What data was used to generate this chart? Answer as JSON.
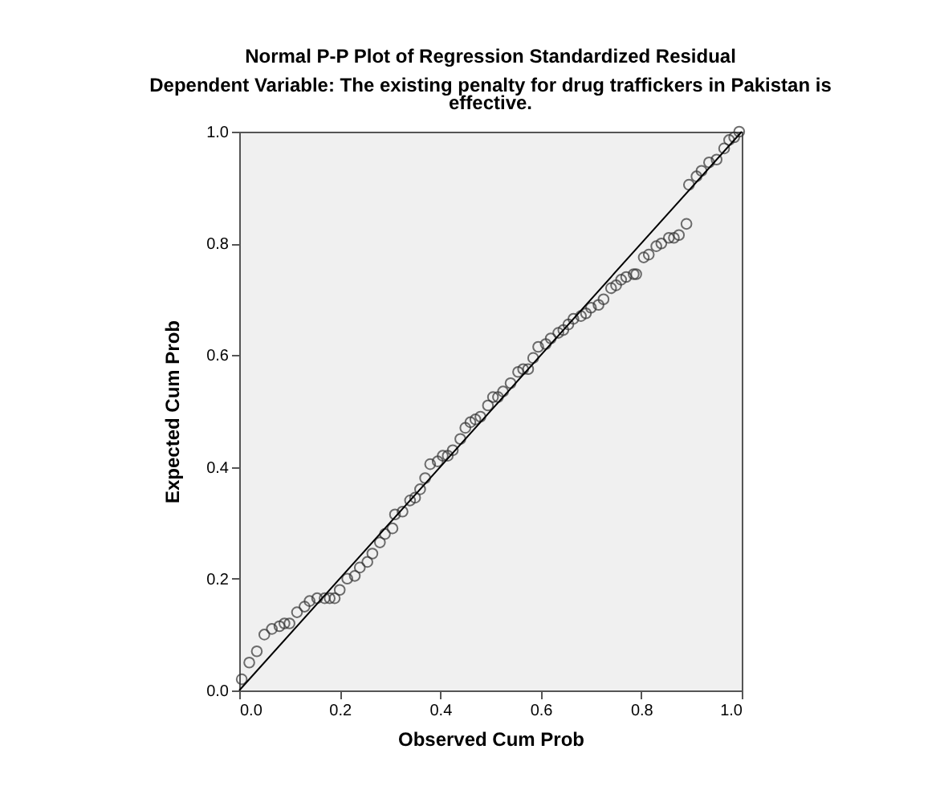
{
  "chart_data": {
    "type": "scatter",
    "title": "Normal P-P Plot of Regression Standardized Residual",
    "subtitle": "Dependent Variable: The existing penalty for drug traffickers in Pakistan is effective.",
    "xlabel": "Observed Cum Prob",
    "ylabel": "Expected Cum Prob",
    "xlim": [
      0,
      1
    ],
    "ylim": [
      0,
      1
    ],
    "xticks": [
      {
        "value": 0,
        "label": "0.0"
      },
      {
        "value": 0.2,
        "label": "0.2"
      },
      {
        "value": 0.4,
        "label": "0.4"
      },
      {
        "value": 0.6,
        "label": "0.6"
      },
      {
        "value": 0.8,
        "label": "0.8"
      },
      {
        "value": 1,
        "label": "1.0"
      }
    ],
    "yticks": [
      {
        "value": 0,
        "label": "0.0"
      },
      {
        "value": 0.2,
        "label": "0.2"
      },
      {
        "value": 0.4,
        "label": "0.4"
      },
      {
        "value": 0.6,
        "label": "0.6"
      },
      {
        "value": 0.8,
        "label": "0.8"
      },
      {
        "value": 1,
        "label": "1.0"
      }
    ],
    "grid": false,
    "series": [
      {
        "marker": "circle",
        "color": "#333333",
        "x": [
          0.005,
          0.02,
          0.035,
          0.05,
          0.065,
          0.08,
          0.09,
          0.1,
          0.115,
          0.13,
          0.14,
          0.155,
          0.17,
          0.18,
          0.19,
          0.2,
          0.215,
          0.23,
          0.24,
          0.255,
          0.265,
          0.28,
          0.29,
          0.305,
          0.31,
          0.325,
          0.34,
          0.35,
          0.36,
          0.37,
          0.38,
          0.395,
          0.405,
          0.415,
          0.425,
          0.44,
          0.45,
          0.46,
          0.47,
          0.48,
          0.495,
          0.505,
          0.515,
          0.525,
          0.54,
          0.555,
          0.565,
          0.575,
          0.585,
          0.595,
          0.61,
          0.62,
          0.635,
          0.645,
          0.655,
          0.665,
          0.68,
          0.69,
          0.7,
          0.715,
          0.725,
          0.74,
          0.75,
          0.76,
          0.77,
          0.785,
          0.79,
          0.805,
          0.815,
          0.83,
          0.84,
          0.855,
          0.865,
          0.875,
          0.89,
          0.895,
          0.91,
          0.92,
          0.935,
          0.95,
          0.965,
          0.975,
          0.985,
          0.995
        ],
        "values": [
          0.02,
          0.05,
          0.07,
          0.1,
          0.11,
          0.115,
          0.12,
          0.12,
          0.14,
          0.15,
          0.16,
          0.165,
          0.165,
          0.165,
          0.165,
          0.18,
          0.2,
          0.205,
          0.22,
          0.23,
          0.245,
          0.265,
          0.28,
          0.29,
          0.315,
          0.32,
          0.34,
          0.345,
          0.36,
          0.38,
          0.405,
          0.41,
          0.42,
          0.42,
          0.43,
          0.45,
          0.47,
          0.48,
          0.485,
          0.49,
          0.51,
          0.525,
          0.525,
          0.535,
          0.55,
          0.57,
          0.575,
          0.575,
          0.595,
          0.615,
          0.62,
          0.63,
          0.64,
          0.645,
          0.655,
          0.665,
          0.67,
          0.675,
          0.685,
          0.69,
          0.7,
          0.72,
          0.725,
          0.735,
          0.74,
          0.745,
          0.745,
          0.775,
          0.78,
          0.795,
          0.8,
          0.81,
          0.81,
          0.815,
          0.835,
          0.905,
          0.92,
          0.93,
          0.945,
          0.95,
          0.97,
          0.985,
          0.99,
          1.0
        ]
      },
      {
        "type": "line",
        "color": "#000000",
        "x": [
          0,
          1
        ],
        "values": [
          0,
          1
        ]
      }
    ]
  }
}
